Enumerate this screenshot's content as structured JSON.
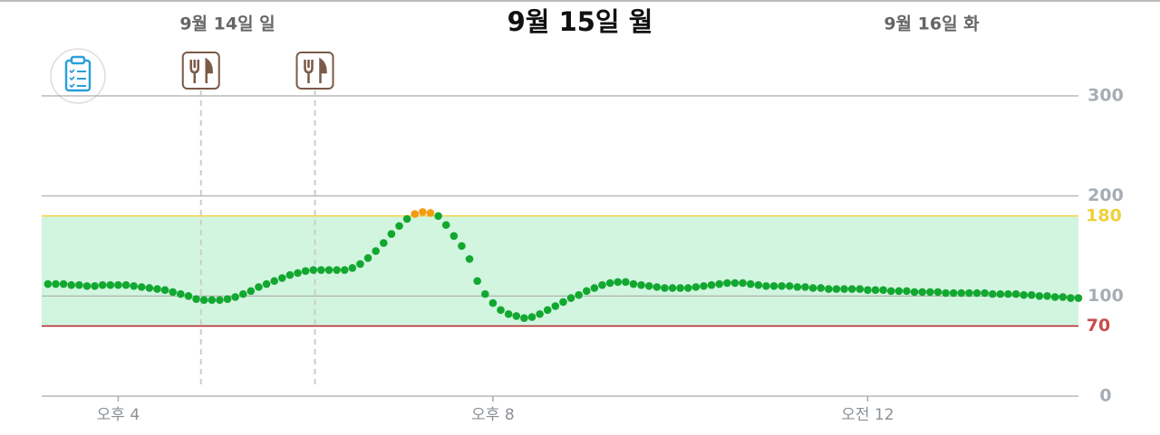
{
  "chart_data": {
    "type": "scatter",
    "dates": [
      "9월 14일 일",
      "9월 15일 월",
      "9월 16일 화"
    ],
    "x": [
      915,
      920,
      925,
      930,
      935,
      940,
      945,
      950,
      955,
      960,
      965,
      970,
      975,
      980,
      985,
      990,
      995,
      1000,
      1005,
      1010,
      1015,
      1020,
      1025,
      1030,
      1035,
      1040,
      1045,
      1050,
      1055,
      1060,
      1065,
      1070,
      1075,
      1080,
      1085,
      1090,
      1095,
      1100,
      1105,
      1110,
      1115,
      1120,
      1125,
      1130,
      1135,
      1140,
      1145,
      1150,
      1155,
      1160,
      1165,
      1170,
      1175,
      1180,
      1185,
      1190,
      1195,
      1200,
      1205,
      1210,
      1215,
      1220,
      1225,
      1230,
      1235,
      1240,
      1245,
      1250,
      1255,
      1260,
      1265,
      1270,
      1275,
      1280,
      1285,
      1290,
      1295,
      1300,
      1305,
      1310,
      1315,
      1320,
      1325,
      1330,
      1335,
      1340,
      1345,
      1350,
      1355,
      1360,
      1365,
      1370,
      1375,
      1380,
      1385,
      1390,
      1395,
      1400,
      1405,
      1410,
      1415,
      1420,
      1425,
      1430,
      1435,
      1440,
      1445,
      1450,
      1455,
      1460,
      1465,
      1470,
      1475,
      1480,
      1485,
      1490,
      1495,
      1500,
      1505,
      1510,
      1515,
      1520,
      1525,
      1530,
      1535,
      1540,
      1545,
      1550,
      1555,
      1560,
      1565,
      1570,
      1575
    ],
    "values": [
      112,
      112,
      112,
      111,
      111,
      110,
      110,
      111,
      111,
      111,
      111,
      110,
      109,
      108,
      107,
      106,
      104,
      102,
      100,
      97,
      96,
      96,
      96,
      97,
      99,
      102,
      105,
      109,
      112,
      115,
      118,
      121,
      123,
      125,
      126,
      126,
      126,
      126,
      126,
      128,
      132,
      138,
      145,
      153,
      162,
      170,
      177,
      182,
      184,
      183,
      180,
      171,
      160,
      150,
      137,
      115,
      102,
      93,
      86,
      82,
      80,
      78,
      79,
      82,
      86,
      90,
      94,
      98,
      101,
      105,
      108,
      111,
      113,
      114,
      114,
      112,
      111,
      110,
      109,
      108,
      108,
      108,
      108,
      109,
      110,
      111,
      112,
      113,
      113,
      113,
      112,
      111,
      110,
      110,
      110,
      110,
      109,
      109,
      108,
      108,
      107,
      107,
      107,
      107,
      107,
      106,
      106,
      106,
      105,
      105,
      105,
      104,
      104,
      104,
      104,
      103,
      103,
      103,
      103,
      103,
      103,
      102,
      102,
      102,
      102,
      101,
      101,
      100,
      100,
      99,
      99,
      98,
      98
    ],
    "color": "#12a830",
    "high_color": "#f39c12",
    "range_color": "#d2f5e0",
    "xlim": [
      911,
      1575
    ],
    "xticks": [
      {
        "value": 960,
        "label": "오후 4"
      },
      {
        "value": 1200,
        "label": "오후 8"
      },
      {
        "value": 1440,
        "label": "오전 12"
      }
    ],
    "ylim": [
      0,
      300
    ],
    "yticks": [
      0,
      100,
      200,
      300
    ],
    "low_threshold": 70,
    "high_threshold": 180,
    "meal_times": [
      1013,
      1086
    ],
    "grid": true
  }
}
